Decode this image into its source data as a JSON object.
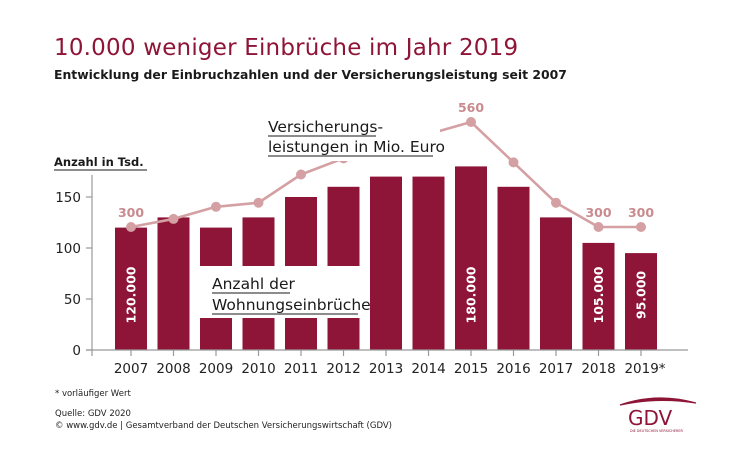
{
  "header": {
    "title": "10.000 weniger Einbrüche im Jahr 2019",
    "subtitle": "Entwicklung der Einbruchzahlen und der Versicherungsleistung seit 2007"
  },
  "chart_data": {
    "type": "bar",
    "title": "10.000 weniger Einbrüche im Jahr 2019",
    "subtitle": "Entwicklung der Einbruchzahlen und der Versicherungsleistung seit 2007",
    "ylabel": "Anzahl in Tsd.",
    "xlabel": "",
    "ylim": [
      0,
      180
    ],
    "yticks": [
      0,
      50,
      100,
      150
    ],
    "ytick_labels": [
      "0",
      "50",
      "100",
      "150"
    ],
    "grid": false,
    "categories": [
      "2007",
      "2008",
      "2009",
      "2010",
      "2011",
      "2012",
      "2013",
      "2014",
      "2015",
      "2016",
      "2017",
      "2018",
      "2019*"
    ],
    "series": [
      {
        "name": "Anzahl der Wohnungseinbrüche",
        "type": "bar",
        "unit": "Tsd.",
        "color": "#8e1537",
        "values": [
          120,
          130,
          120,
          130,
          150,
          160,
          170,
          170,
          180,
          160,
          130,
          105,
          95
        ],
        "data_labels": {
          "0": "120.000",
          "8": "180.000",
          "11": "105.000",
          "12": "95.000"
        }
      },
      {
        "name": "Versicherungsleistungen in Mio. Euro",
        "type": "line",
        "unit": "Mio. Euro",
        "color": "#d4a0a3",
        "values": [
          300,
          320,
          350,
          360,
          430,
          470,
          500,
          530,
          560,
          460,
          360,
          300,
          300
        ],
        "data_labels": {
          "0": "300",
          "8": "560",
          "11": "300",
          "12": "300"
        }
      }
    ],
    "annotations": {
      "bar_series_label": [
        "Anzahl der",
        "Wohnungseinbrüche"
      ],
      "line_series_label": [
        "Versicherungs-",
        "leistungen in Mio. Euro"
      ]
    }
  },
  "footer": {
    "footnote": "* vorläufiger Wert",
    "source": "Quelle: GDV 2020",
    "copyright": "© www.gdv.de | Gesamtverband der Deutschen Versicherungswirtschaft (GDV)"
  },
  "logo": {
    "text": "GDV",
    "tagline": "DIE DEUTSCHEN VERSICHERER",
    "color": "#8e1537"
  }
}
